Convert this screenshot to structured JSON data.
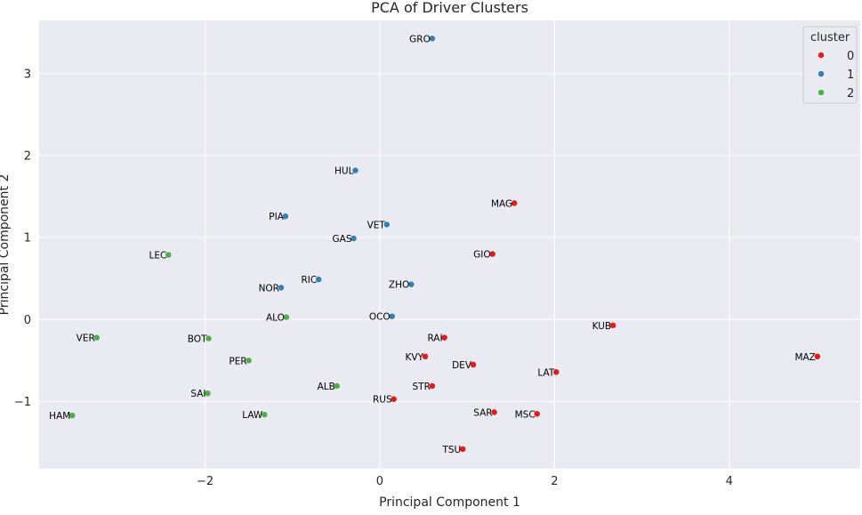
{
  "chart_data": {
    "type": "scatter",
    "title": "PCA of Driver Clusters",
    "xlabel": "Principal Component 1",
    "ylabel": "Principal Component 2",
    "xlim": [
      -3.9,
      5.5
    ],
    "ylim": [
      -1.82,
      3.65
    ],
    "xticks": [
      -2,
      0,
      2,
      4
    ],
    "yticks": [
      -1,
      0,
      1,
      2,
      3
    ],
    "xtick_labels": [
      "−2",
      "0",
      "2",
      "4"
    ],
    "ytick_labels": [
      "−1",
      "0",
      "1",
      "2",
      "3"
    ],
    "grid": true,
    "legend_title": "cluster",
    "legend_position": "top-right",
    "series": [
      {
        "name": "0",
        "color": "#e41a1c",
        "points": [
          {
            "label": "MAG",
            "x": 1.54,
            "y": 1.42
          },
          {
            "label": "GIO",
            "x": 1.29,
            "y": 0.8
          },
          {
            "label": "KUB",
            "x": 2.67,
            "y": -0.07
          },
          {
            "label": "MAZ",
            "x": 5.01,
            "y": -0.45
          },
          {
            "label": "RAI",
            "x": 0.74,
            "y": -0.22
          },
          {
            "label": "KVY",
            "x": 0.52,
            "y": -0.45
          },
          {
            "label": "DEV",
            "x": 1.07,
            "y": -0.55
          },
          {
            "label": "LAT",
            "x": 2.02,
            "y": -0.64
          },
          {
            "label": "STR",
            "x": 0.6,
            "y": -0.81
          },
          {
            "label": "RUS",
            "x": 0.16,
            "y": -0.97
          },
          {
            "label": "SAR",
            "x": 1.31,
            "y": -1.13
          },
          {
            "label": "MSC",
            "x": 1.8,
            "y": -1.15
          },
          {
            "label": "TSU",
            "x": 0.95,
            "y": -1.58
          }
        ]
      },
      {
        "name": "1",
        "color": "#377eb8",
        "points": [
          {
            "label": "GRO",
            "x": 0.6,
            "y": 3.43
          },
          {
            "label": "HUL",
            "x": -0.28,
            "y": 1.82
          },
          {
            "label": "PIA",
            "x": -1.08,
            "y": 1.26
          },
          {
            "label": "VET",
            "x": 0.08,
            "y": 1.16
          },
          {
            "label": "GAS",
            "x": -0.3,
            "y": 0.99
          },
          {
            "label": "RIC",
            "x": -0.7,
            "y": 0.49
          },
          {
            "label": "ZHO",
            "x": 0.36,
            "y": 0.43
          },
          {
            "label": "NOR",
            "x": -1.13,
            "y": 0.39
          },
          {
            "label": "OCO",
            "x": 0.14,
            "y": 0.04
          }
        ]
      },
      {
        "name": "2",
        "color": "#4daf4a",
        "points": [
          {
            "label": "LEC",
            "x": -2.42,
            "y": 0.79
          },
          {
            "label": "ALO",
            "x": -1.07,
            "y": 0.03
          },
          {
            "label": "VER",
            "x": -3.24,
            "y": -0.22
          },
          {
            "label": "BOT",
            "x": -1.96,
            "y": -0.23
          },
          {
            "label": "PER",
            "x": -1.5,
            "y": -0.5
          },
          {
            "label": "ALB",
            "x": -0.49,
            "y": -0.81
          },
          {
            "label": "SAI",
            "x": -1.97,
            "y": -0.9
          },
          {
            "label": "HAM",
            "x": -3.52,
            "y": -1.17
          },
          {
            "label": "LAW",
            "x": -1.32,
            "y": -1.16
          }
        ]
      }
    ]
  }
}
